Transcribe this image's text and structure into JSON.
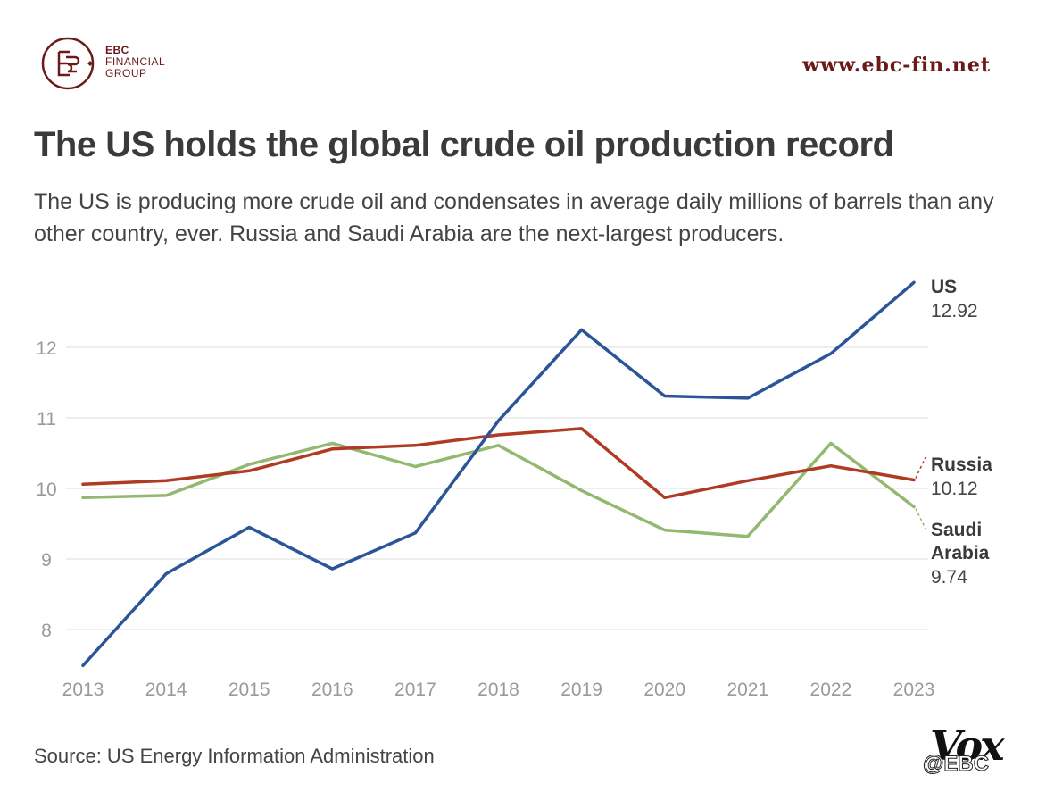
{
  "brand": {
    "logo_line1": "EBC",
    "logo_line2": "FINANCIAL",
    "logo_line3": "GROUP",
    "url": "www.ebc-fin.net",
    "brand_color": "#6b1a1a"
  },
  "header": {
    "title": "The US holds the global crude oil production record",
    "subtitle": "The US is producing more crude oil and condensates in average daily millions of barrels than any other country, ever. Russia and Saudi Arabia are the next-largest producers."
  },
  "footer": {
    "source": "Source: US Energy Information Administration",
    "publisher_logo": "Vox",
    "watermark": "@EBC"
  },
  "chart_data": {
    "type": "line",
    "title": "The US holds the global crude oil production record",
    "x": [
      2013,
      2014,
      2015,
      2016,
      2017,
      2018,
      2019,
      2020,
      2021,
      2022,
      2023
    ],
    "y_ticks": [
      8,
      9,
      10,
      11,
      12
    ],
    "ylim": [
      7.5,
      13.2
    ],
    "grid": true,
    "series": [
      {
        "name": "US",
        "color": "#2b5598",
        "values": [
          7.49,
          8.79,
          9.45,
          8.86,
          9.37,
          10.96,
          12.25,
          11.31,
          11.28,
          11.91,
          12.92
        ],
        "label_value": "12.92"
      },
      {
        "name": "Russia",
        "color": "#b03a22",
        "values": [
          10.06,
          10.11,
          10.25,
          10.56,
          10.61,
          10.76,
          10.85,
          9.87,
          10.11,
          10.32,
          10.12
        ],
        "label_value": "10.12"
      },
      {
        "name": "Saudi Arabia",
        "color": "#93b870",
        "values": [
          9.87,
          9.9,
          10.34,
          10.64,
          10.31,
          10.61,
          9.97,
          9.41,
          9.32,
          10.64,
          9.74
        ],
        "label_value": "9.74"
      }
    ]
  }
}
